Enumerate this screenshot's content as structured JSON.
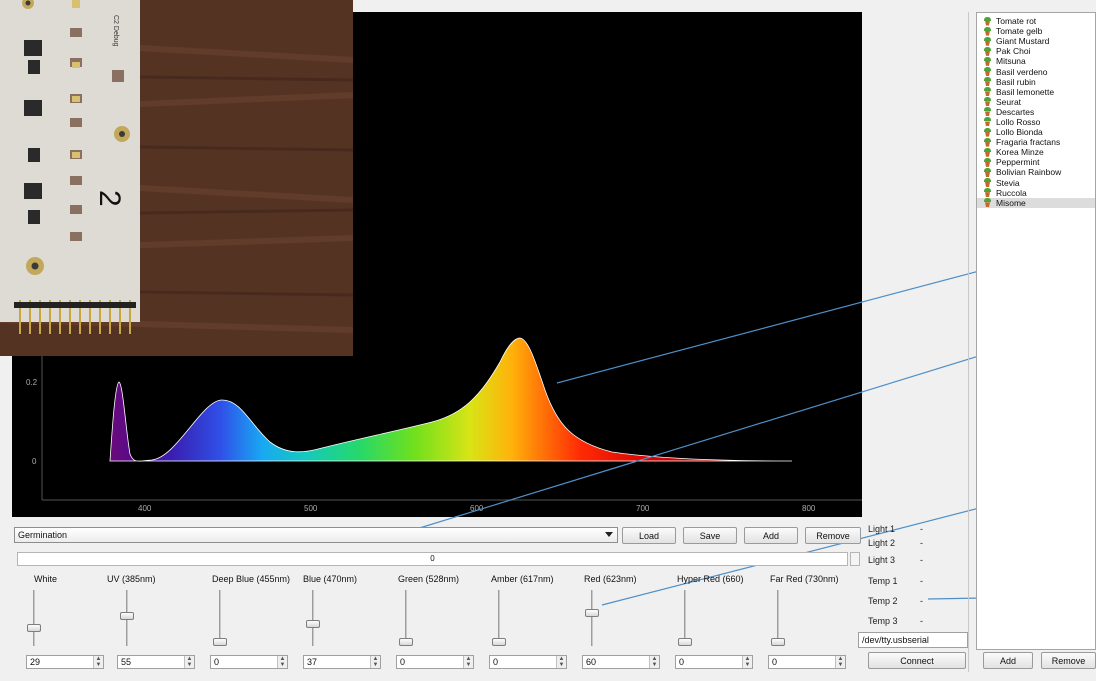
{
  "spectrum_chart": {
    "y_ticks": [
      "0.2",
      "0"
    ],
    "x_ticks": [
      "400",
      "500",
      "600",
      "700",
      "800"
    ]
  },
  "profile": {
    "selected": "Germination",
    "load": "Load",
    "save": "Save",
    "add": "Add",
    "remove": "Remove"
  },
  "master_value": "0",
  "channels": [
    {
      "label": "White",
      "value": "29",
      "level": 0.29
    },
    {
      "label": "UV (385nm)",
      "value": "55",
      "level": 0.55
    },
    {
      "label": "Deep Blue (455nm)",
      "value": "0",
      "level": 0
    },
    {
      "label": "Blue (470nm)",
      "value": "37",
      "level": 0.37
    },
    {
      "label": "Green (528nm)",
      "value": "0",
      "level": 0
    },
    {
      "label": "Amber (617nm)",
      "value": "0",
      "level": 0
    },
    {
      "label": "Red (623nm)",
      "value": "60",
      "level": 0.6
    },
    {
      "label": "Hyper Red (660)",
      "value": "0",
      "level": 0
    },
    {
      "label": "Far Red (730nm)",
      "value": "0",
      "level": 0
    }
  ],
  "status": [
    {
      "label": "Light 1",
      "value": "-"
    },
    {
      "label": "Light 2",
      "value": "-"
    },
    {
      "label": "Light 3",
      "value": "-"
    },
    {
      "label": "Temp 1",
      "value": "-"
    },
    {
      "label": "Temp 2",
      "value": "-"
    },
    {
      "label": "Temp 3",
      "value": "-"
    }
  ],
  "serial_port": "/dev/tty.usbserial",
  "connect": "Connect",
  "plants": [
    "Tomate rot",
    "Tomate gelb",
    "Giant Mustard",
    "Pak Choi",
    "Mitsuna",
    "Basil verdeno",
    "Basil rubin",
    "Basil lemonette",
    "Seurat",
    "Descartes",
    "Lollo Rosso",
    "Lollo Bionda",
    "Fragaria fractans",
    "Korea Minze",
    "Peppermint",
    "Bolivian Rainbow",
    "Stevia",
    "Ruccola",
    "Misome"
  ],
  "plants_selected_index": 18,
  "plant_add": "Add",
  "plant_remove": "Remove",
  "board_label": "2",
  "debug_label": "C2 Debug"
}
